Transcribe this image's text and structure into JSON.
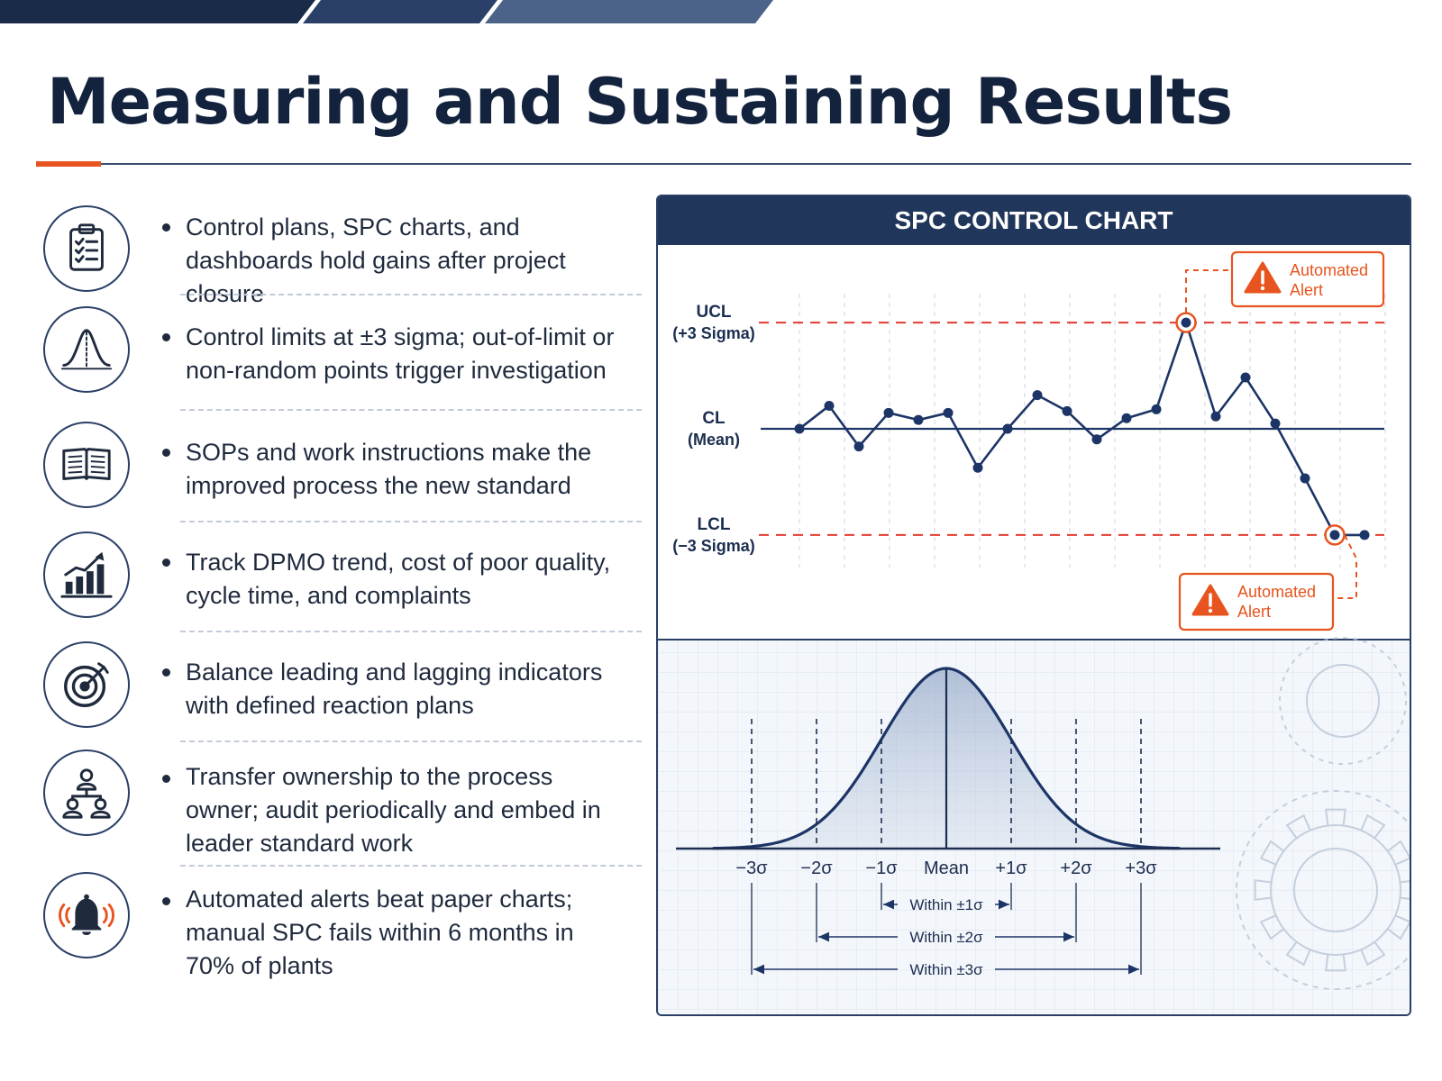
{
  "title": "Measuring and Sustaining Results",
  "bullets": [
    {
      "icon": "clipboard-checklist-icon",
      "text": "Control plans, SPC charts, and dashboards hold gains after project closure"
    },
    {
      "icon": "bell-curve-icon",
      "text": "Control limits at ±3 sigma; out-of-limit or non-random points trigger investigation"
    },
    {
      "icon": "open-book-icon",
      "text": "SOPs and work instructions make the improved process the new standard"
    },
    {
      "icon": "trend-bar-chart-icon",
      "text": "Track DPMO trend, cost of poor quality, cycle time, and complaints"
    },
    {
      "icon": "target-icon",
      "text": "Balance leading and lagging indicators with defined reaction plans"
    },
    {
      "icon": "org-hierarchy-icon",
      "text": "Transfer ownership to the process owner; audit periodically and embed in leader standard work"
    },
    {
      "icon": "alarm-bell-icon",
      "text": "Automated alerts beat paper charts; manual SPC fails within 6 months in 70% of plants"
    }
  ],
  "colors": {
    "navy": "#20365a",
    "line": "#1c3566",
    "limit": "#e23b2e",
    "alert": "#e8541f"
  },
  "chart_data": [
    {
      "type": "line",
      "title": "SPC CONTROL CHART",
      "limits": [
        {
          "key": "ucl",
          "label": "UCL",
          "sublabel": "(+3 Sigma)",
          "value": 3
        },
        {
          "key": "cl",
          "label": "CL",
          "sublabel": "(Mean)",
          "value": 0
        },
        {
          "key": "lcl",
          "label": "LCL",
          "sublabel": "(−3 Sigma)",
          "value": -3
        }
      ],
      "x": [
        1,
        2,
        3,
        4,
        5,
        6,
        7,
        8,
        9,
        10,
        11,
        12,
        13,
        14,
        15,
        16,
        17,
        18,
        19,
        20
      ],
      "values": [
        0,
        0.65,
        -0.5,
        0.45,
        0.25,
        0.45,
        -1.1,
        0,
        0.95,
        0.5,
        -0.3,
        0.3,
        0.55,
        3,
        0.35,
        1.45,
        0.15,
        -1.4,
        -3,
        -3
      ],
      "alerts": [
        {
          "point_index": 13,
          "label_line1": "Automated",
          "label_line2": "Alert"
        },
        {
          "point_index": 18,
          "label_line1": "Automated",
          "label_line2": "Alert"
        }
      ],
      "grid": "vertical dashed"
    },
    {
      "type": "area",
      "x_ticks": [
        "−3σ",
        "−2σ",
        "−1σ",
        "Mean",
        "+1σ",
        "+2σ",
        "+3σ"
      ],
      "x_range": [
        -3.6,
        3.6
      ],
      "ranges": [
        {
          "sigma": 1,
          "label": "Within ±1σ"
        },
        {
          "sigma": 2,
          "label": "Within ±2σ"
        },
        {
          "sigma": 3,
          "label": "Within ±3σ"
        }
      ]
    }
  ]
}
